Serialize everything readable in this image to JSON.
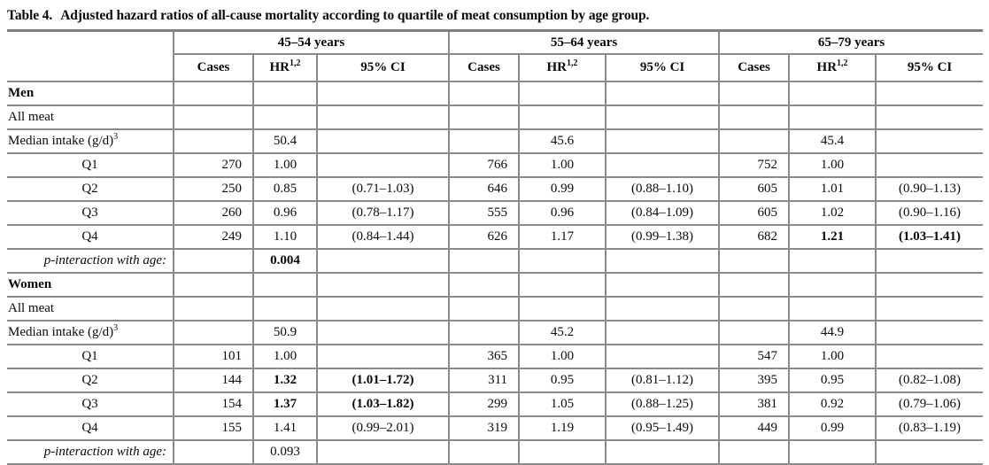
{
  "title": {
    "prefix": "Table 4.",
    "text": "Adjusted hazard ratios of all-cause mortality according to quartile of meat consumption by age group."
  },
  "table": {
    "age_groups": [
      "45–54 years",
      "55–64 years",
      "65–79 years"
    ],
    "column_headers": {
      "cases": "Cases",
      "hr_base": "HR",
      "hr_sup": "1,2",
      "ci": "95% CI"
    },
    "rows": [
      {
        "label": "Men",
        "type": "section",
        "cells": [
          "",
          "",
          "",
          "",
          "",
          "",
          "",
          "",
          ""
        ]
      },
      {
        "label": "All meat",
        "type": "plain",
        "cells": [
          "",
          "",
          "",
          "",
          "",
          "",
          "",
          "",
          ""
        ]
      },
      {
        "label": "Median intake (g/d)",
        "label_sup": "3",
        "type": "plain",
        "cells": [
          "",
          "50.4",
          "",
          "",
          "45.6",
          "",
          "",
          "45.4",
          ""
        ]
      },
      {
        "label": "Q1",
        "type": "quartile",
        "cells": [
          "270",
          "1.00",
          "",
          "766",
          "1.00",
          "",
          "752",
          "1.00",
          ""
        ]
      },
      {
        "label": "Q2",
        "type": "quartile",
        "cells": [
          "250",
          "0.85",
          "(0.71–1.03)",
          "646",
          "0.99",
          "(0.88–1.10)",
          "605",
          "1.01",
          "(0.90–1.13)"
        ]
      },
      {
        "label": "Q3",
        "type": "quartile",
        "cells": [
          "260",
          "0.96",
          "(0.78–1.17)",
          "555",
          "0.96",
          "(0.84–1.09)",
          "605",
          "1.02",
          "(0.90–1.16)"
        ]
      },
      {
        "label": "Q4",
        "type": "quartile",
        "cells": [
          "249",
          "1.10",
          "(0.84–1.44)",
          "626",
          "1.17",
          "(0.99–1.38)",
          "682",
          "1.21",
          "(1.03–1.41)"
        ],
        "bold_cells": [
          7,
          8
        ]
      },
      {
        "label": "p-interaction with age:",
        "type": "p_interaction",
        "cells": [
          "",
          "0.004",
          "",
          "",
          "",
          "",
          "",
          "",
          ""
        ],
        "bold_cells": [
          1
        ]
      },
      {
        "label": "Women",
        "type": "section",
        "cells": [
          "",
          "",
          "",
          "",
          "",
          "",
          "",
          "",
          ""
        ]
      },
      {
        "label": "All meat",
        "type": "plain",
        "cells": [
          "",
          "",
          "",
          "",
          "",
          "",
          "",
          "",
          ""
        ]
      },
      {
        "label": "Median intake (g/d)",
        "label_sup": "3",
        "type": "plain",
        "cells": [
          "",
          "50.9",
          "",
          "",
          "45.2",
          "",
          "",
          "44.9",
          ""
        ]
      },
      {
        "label": "Q1",
        "type": "quartile",
        "cells": [
          "101",
          "1.00",
          "",
          "365",
          "1.00",
          "",
          "547",
          "1.00",
          ""
        ]
      },
      {
        "label": "Q2",
        "type": "quartile",
        "cells": [
          "144",
          "1.32",
          "(1.01–1.72)",
          "311",
          "0.95",
          "(0.81–1.12)",
          "395",
          "0.95",
          "(0.82–1.08)"
        ],
        "bold_cells": [
          1,
          2
        ]
      },
      {
        "label": "Q3",
        "type": "quartile",
        "cells": [
          "154",
          "1.37",
          "(1.03–1.82)",
          "299",
          "1.05",
          "(0.88–1.25)",
          "381",
          "0.92",
          "(0.79–1.06)"
        ],
        "bold_cells": [
          1,
          2
        ]
      },
      {
        "label": "Q4",
        "type": "quartile",
        "cells": [
          "155",
          "1.41",
          "(0.99–2.01)",
          "319",
          "1.19",
          "(0.95–1.49)",
          "449",
          "0.99",
          "(0.83–1.19)"
        ]
      },
      {
        "label": "p-interaction with age:",
        "type": "p_interaction",
        "cells": [
          "",
          "0.093",
          "",
          "",
          "",
          "",
          "",
          "",
          ""
        ]
      }
    ]
  }
}
